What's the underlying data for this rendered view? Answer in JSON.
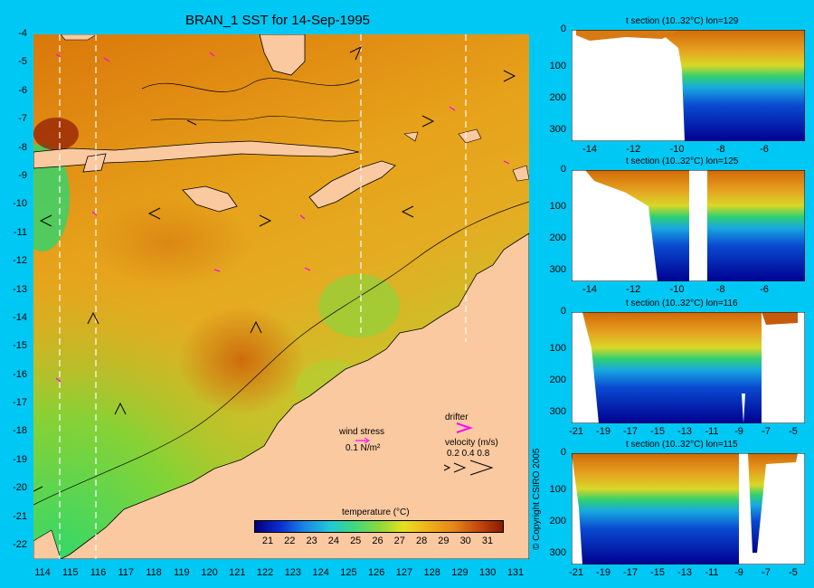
{
  "main_map": {
    "title": "BRAN_1 SST for 14-Sep-1995",
    "lat_ticks": [
      "-4",
      "-5",
      "-6",
      "-7",
      "-8",
      "-9",
      "-10",
      "-11",
      "-12",
      "-13",
      "-14",
      "-15",
      "-16",
      "-17",
      "-18",
      "-19",
      "-20",
      "-21",
      "-22"
    ],
    "lon_ticks": [
      "114",
      "115",
      "116",
      "117",
      "118",
      "119",
      "120",
      "121",
      "122",
      "123",
      "124",
      "125",
      "126",
      "127",
      "128",
      "129",
      "130",
      "131"
    ],
    "wind_stress_label": "wind stress",
    "wind_stress_scale": "0.1 N/m²",
    "drifter_label": "drifter",
    "velocity_label": "velocity (m/s)",
    "velocity_scale": "0.2 0.4 0.8",
    "colorbar_title": "temperature (°C)",
    "colorbar_ticks": [
      "21",
      "22",
      "23",
      "24",
      "25",
      "26",
      "27",
      "28",
      "29",
      "30",
      "31"
    ],
    "colors": {
      "land": "#fbc9a0",
      "background": "#00c8f5",
      "drifter": "#ff00ff"
    }
  },
  "copyright": "© Copyright CSIRO 2005",
  "sections": [
    {
      "title": "t section (10..32°C) lon=129",
      "yticks": [
        "0",
        "100",
        "200",
        "300"
      ],
      "xticks": [
        "-14",
        "-12",
        "-10",
        "-8",
        "-6"
      ]
    },
    {
      "title": "t section (10..32°C) lon=125",
      "yticks": [
        "0",
        "100",
        "200",
        "300"
      ],
      "xticks": [
        "-14",
        "-12",
        "-10",
        "-8",
        "-6"
      ]
    },
    {
      "title": "t section (10..32°C) lon=116",
      "yticks": [
        "0",
        "100",
        "200",
        "300"
      ],
      "xticks": [
        "-21",
        "-19",
        "-17",
        "-15",
        "-13",
        "-11",
        "-9",
        "-7",
        "-5"
      ]
    },
    {
      "title": "t section (10..32°C) lon=115",
      "yticks": [
        "0",
        "100",
        "200",
        "300"
      ],
      "xticks": [
        "-21",
        "-19",
        "-17",
        "-15",
        "-13",
        "-11",
        "-9",
        "-7",
        "-5"
      ]
    }
  ]
}
